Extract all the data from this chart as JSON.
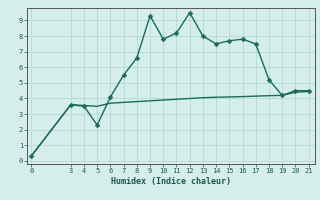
{
  "line1_x": [
    0,
    3,
    4,
    5,
    6,
    7,
    8,
    9,
    10,
    11,
    12,
    13,
    14,
    15,
    16,
    17,
    18,
    19,
    20,
    21
  ],
  "line1_y": [
    0.3,
    3.6,
    3.5,
    2.3,
    4.1,
    5.5,
    6.6,
    9.3,
    7.8,
    8.2,
    9.5,
    8.0,
    7.5,
    7.7,
    7.8,
    7.5,
    5.2,
    4.2,
    4.5,
    4.5
  ],
  "line2_x": [
    0,
    3,
    4,
    5,
    6,
    7,
    8,
    9,
    10,
    11,
    12,
    13,
    14,
    15,
    16,
    17,
    18,
    19,
    20,
    21
  ],
  "line2_y": [
    0.3,
    3.6,
    3.55,
    3.5,
    3.7,
    3.75,
    3.8,
    3.85,
    3.9,
    3.95,
    4.0,
    4.05,
    4.08,
    4.1,
    4.12,
    4.15,
    4.18,
    4.2,
    4.4,
    4.45
  ],
  "line_color": "#1a6b5a",
  "bg_color": "#d6eeeb",
  "grid_color": "#b5d8d4",
  "xlabel": "Humidex (Indice chaleur)",
  "xticks": [
    0,
    3,
    4,
    5,
    6,
    7,
    8,
    9,
    10,
    11,
    12,
    13,
    14,
    15,
    16,
    17,
    18,
    19,
    20,
    21
  ],
  "yticks": [
    0,
    1,
    2,
    3,
    4,
    5,
    6,
    7,
    8,
    9
  ],
  "xlim": [
    -0.3,
    21.5
  ],
  "ylim": [
    -0.2,
    9.8
  ],
  "marker_size": 2.5,
  "line_width": 1.0,
  "xlabel_fontsize": 6.0,
  "tick_fontsize": 5.0
}
